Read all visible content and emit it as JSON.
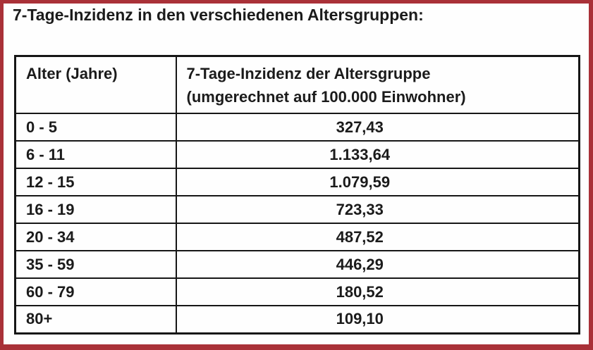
{
  "frame": {
    "border_color": "#a93138",
    "background": "#fefefe"
  },
  "title": "7-Tage-Inzidenz in den verschiedenen Altersgruppen:",
  "table": {
    "header": {
      "col1": "Alter (Jahre)",
      "col2_line1": "7-Tage-Inzidenz der Altersgruppe",
      "col2_line2": "(umgerechnet auf 100.000 Einwohner)"
    },
    "rows": [
      {
        "age": "0 - 5",
        "incidence": "327,43"
      },
      {
        "age": "6 - 11",
        "incidence": "1.133,64"
      },
      {
        "age": "12 - 15",
        "incidence": "1.079,59"
      },
      {
        "age": "16 - 19",
        "incidence": "723,33"
      },
      {
        "age": "20 - 34",
        "incidence": "487,52"
      },
      {
        "age": "35 - 59",
        "incidence": "446,29"
      },
      {
        "age": "60 - 79",
        "incidence": "180,52"
      },
      {
        "age": "80+",
        "incidence": "109,10"
      }
    ]
  },
  "chart_data": {
    "type": "table",
    "title": "7-Tage-Inzidenz in den verschiedenen Altersgruppen:",
    "columns": [
      "Alter (Jahre)",
      "7-Tage-Inzidenz der Altersgruppe (umgerechnet auf 100.000 Einwohner)"
    ],
    "categories": [
      "0 - 5",
      "6 - 11",
      "12 - 15",
      "16 - 19",
      "20 - 34",
      "35 - 59",
      "60 - 79",
      "80+"
    ],
    "values": [
      327.43,
      1133.64,
      1079.59,
      723.33,
      487.52,
      446.29,
      180.52,
      109.1
    ]
  }
}
